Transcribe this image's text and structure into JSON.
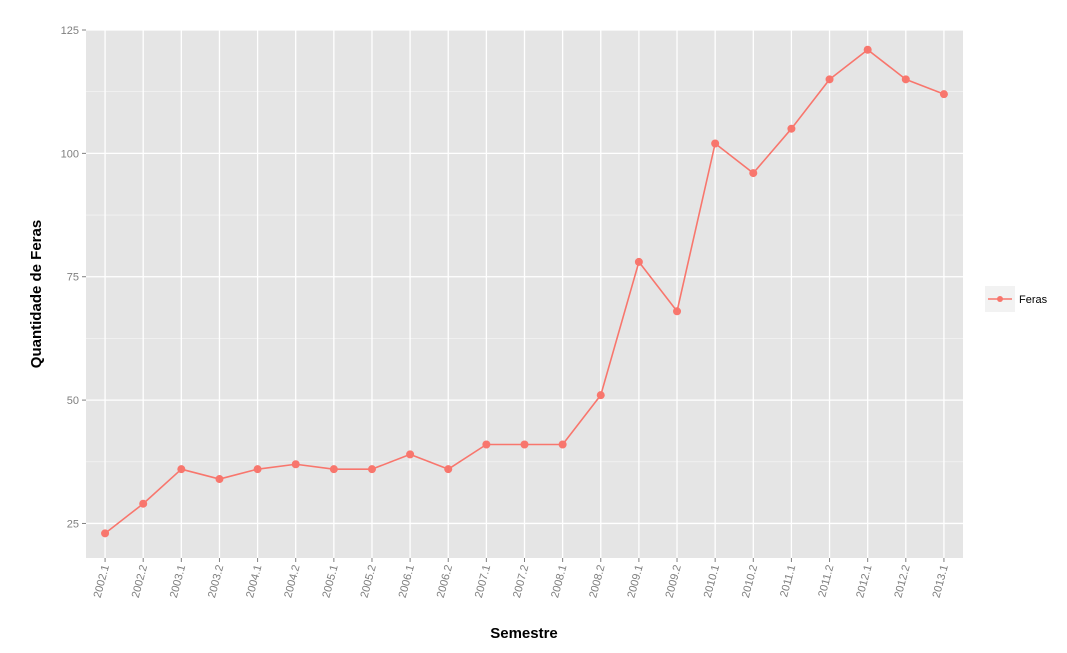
{
  "chart_data": {
    "type": "line",
    "title": "",
    "xlabel": "Semestre",
    "ylabel": "Quantidade de Feras",
    "categories": [
      "2002.1",
      "2002.2",
      "2003.1",
      "2003.2",
      "2004.1",
      "2004.2",
      "2005.1",
      "2005.2",
      "2006.1",
      "2006.2",
      "2007.1",
      "2007.2",
      "2008.1",
      "2008.2",
      "2009.1",
      "2009.2",
      "2010.1",
      "2010.2",
      "2011.1",
      "2011.2",
      "2012.1",
      "2012.2",
      "2013.1"
    ],
    "series": [
      {
        "name": "Feras",
        "values": [
          23,
          29,
          36,
          34,
          36,
          37,
          36,
          36,
          39,
          36,
          41,
          41,
          41,
          51,
          78,
          68,
          102,
          96,
          105,
          115,
          121,
          115,
          112
        ],
        "color": "#f8766d"
      }
    ],
    "ylim": [
      18,
      125
    ],
    "yticks": [
      25,
      50,
      75,
      100,
      125
    ],
    "grid": true,
    "legend_position": "right",
    "panel_color": "#e5e5e5",
    "grid_color": "#ffffff"
  }
}
